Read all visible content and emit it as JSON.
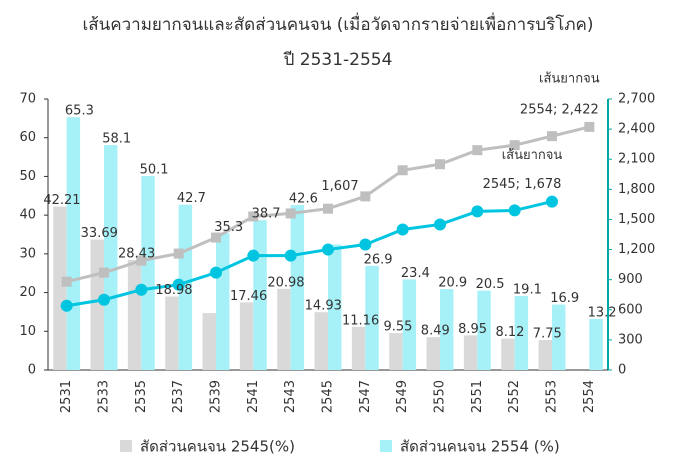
{
  "chart_data": {
    "type": "bar_line",
    "title": "เส้นความยากจนและสัดส่วนคนจน (เมื่อวัดจากรายจ่ายเพื่อการบริโภค)",
    "subtitle": "ปี 2531-2554",
    "categories": [
      "2531",
      "2533",
      "2535",
      "2537",
      "2539",
      "2541",
      "2543",
      "2545",
      "2547",
      "2549",
      "2550",
      "2551",
      "2552",
      "2553",
      "2554"
    ],
    "ylim": [
      0,
      70
    ],
    "yticks": [
      0,
      10,
      20,
      30,
      40,
      50,
      60,
      70
    ],
    "y2lim": [
      0,
      2700
    ],
    "y2ticks": [
      0,
      300,
      600,
      900,
      {
        "value": 1200,
        "label": "1,200"
      },
      {
        "value": 1500,
        "label": "1,500"
      },
      {
        "value": 1800,
        "label": "1,800"
      },
      {
        "value": 2100,
        "label": "2,100"
      },
      {
        "value": 2400,
        "label": "2,400"
      },
      {
        "value": 2700,
        "label": "2,700"
      }
    ],
    "series": [
      {
        "name": "สัดส่วนคนจน 2545(%)",
        "kind": "bar",
        "color": "#d9d9d9",
        "values": [
          42.21,
          33.69,
          28.43,
          18.98,
          14.7,
          17.46,
          20.98,
          14.93,
          11.16,
          9.55,
          8.49,
          8.95,
          8.12,
          7.75,
          null
        ],
        "value_labels": [
          "42.21",
          "33.69",
          "28.43",
          "18.98",
          null,
          "17.46",
          "20.98",
          "14.93",
          "11.16",
          "9.55",
          "8.49",
          "8.95",
          "8.12",
          "7.75",
          null
        ]
      },
      {
        "name": "สัดส่วนคนจน 2554 (%)",
        "kind": "bar",
        "color": "#a6f0f7",
        "values": [
          65.3,
          58.1,
          50.1,
          42.7,
          35.3,
          38.7,
          42.6,
          32.4,
          26.9,
          23.4,
          20.9,
          20.5,
          19.1,
          16.9,
          13.2
        ],
        "value_labels": [
          "65.3",
          "58.1",
          "50.1",
          "42.7",
          "35.3",
          "38.7",
          "42.6",
          null,
          "26.9",
          "23.4",
          "20.9",
          "20.5",
          "19.1",
          "16.9",
          "13.2"
        ]
      },
      {
        "name": "เส้นยากจน",
        "kind": "line",
        "axis": "y2",
        "color": "#bfbfbf",
        "values": [
          880,
          970,
          1090,
          1160,
          1320,
          1530,
          1560,
          1607,
          1730,
          1990,
          2050,
          2190,
          2240,
          2330,
          2422
        ],
        "value_labels": [
          null,
          null,
          null,
          null,
          null,
          null,
          null,
          "1,607",
          null,
          null,
          null,
          null,
          null,
          null,
          null
        ]
      },
      {
        "name": "เส้นยากจน",
        "kind": "line",
        "axis": "y2",
        "color": "#00c5e0",
        "values": [
          640,
          700,
          800,
          850,
          970,
          1140,
          1140,
          1200,
          1250,
          1400,
          1450,
          1580,
          1590,
          1678,
          null
        ]
      }
    ],
    "annotations": [
      {
        "text": "2554; 2,422"
      },
      {
        "text": "2545; 1,678"
      }
    ]
  }
}
